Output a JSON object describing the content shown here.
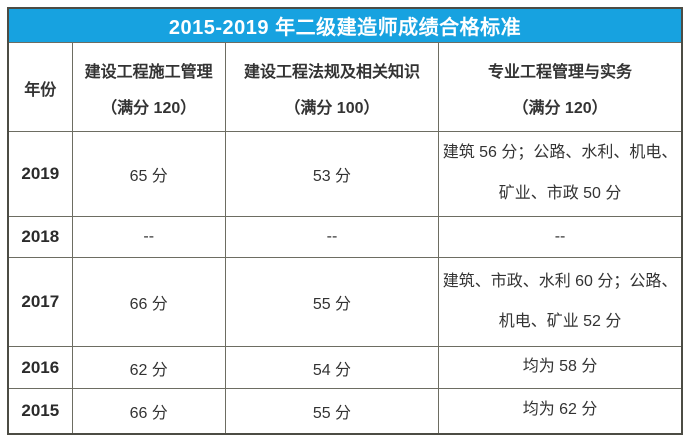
{
  "title": "2015-2019 年二级建造师成绩合格标准",
  "table": {
    "columns": [
      {
        "label": "年份",
        "sub": ""
      },
      {
        "label": "建设工程施工管理",
        "sub": "（满分 120）"
      },
      {
        "label": "建设工程法规及相关知识",
        "sub": "（满分 100）"
      },
      {
        "label": "专业工程管理与实务",
        "sub": "（满分 120）"
      }
    ],
    "rows": [
      {
        "year": "2019",
        "management": "65 分",
        "regulations": "53 分",
        "practice": "建筑 56 分；公路、水利、机电、矿业、市政 50 分"
      },
      {
        "year": "2018",
        "management": "--",
        "regulations": "--",
        "practice": "--"
      },
      {
        "year": "2017",
        "management": "66 分",
        "regulations": "55 分",
        "practice": "建筑、市政、水利 60 分；公路、机电、矿业 52 分"
      },
      {
        "year": "2016",
        "management": "62 分",
        "regulations": "54 分",
        "practice": "均为 58 分"
      },
      {
        "year": "2015",
        "management": "66 分",
        "regulations": "55 分",
        "practice": "均为 62 分"
      }
    ]
  },
  "colors": {
    "title_bg": "#17a2e0",
    "title_text": "#ffffff",
    "border_outer": "#4c4c44",
    "border_inner": "#6d6d62",
    "text": "#333333"
  },
  "chart_data": {
    "type": "table",
    "title": "2015-2019 年二级建造师成绩合格标准",
    "columns": [
      "年份",
      "建设工程施工管理（满分 120）",
      "建设工程法规及相关知识（满分 100）",
      "专业工程管理与实务（满分 120）"
    ],
    "rows": [
      [
        "2019",
        "65 分",
        "53 分",
        "建筑 56 分；公路、水利、机电、矿业、市政 50 分"
      ],
      [
        "2018",
        "--",
        "--",
        "--"
      ],
      [
        "2017",
        "66 分",
        "55 分",
        "建筑、市政、水利 60 分；公路、机电、矿业 52 分"
      ],
      [
        "2016",
        "62 分",
        "54 分",
        "均为 58 分"
      ],
      [
        "2015",
        "66 分",
        "55 分",
        "均为 62 分"
      ]
    ]
  }
}
